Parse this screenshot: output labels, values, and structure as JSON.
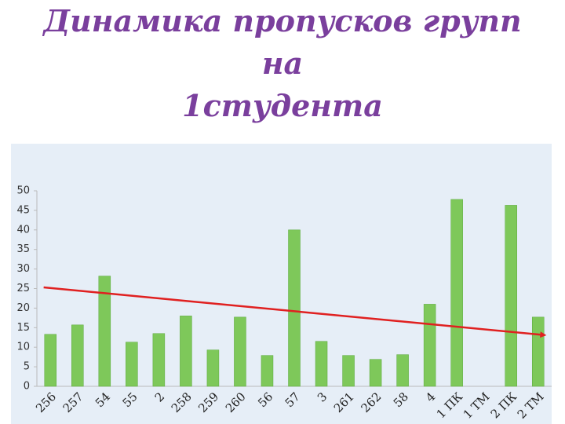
{
  "chart_data": {
    "type": "bar",
    "title": [
      "Динамика пропусков групп",
      "на",
      "1студента"
    ],
    "categories": [
      "256",
      "257",
      "54",
      "55",
      "2",
      "258",
      "259",
      "260",
      "56",
      "57",
      "3",
      "261",
      "262",
      "58",
      "4",
      "1 ПК",
      "1 ТМ",
      "2 ПК",
      "2 ТМ"
    ],
    "values": [
      13.3,
      15.7,
      28.2,
      11.3,
      13.5,
      18,
      9.3,
      17.7,
      7.9,
      40,
      11.5,
      7.9,
      6.9,
      8.1,
      21,
      47.8,
      null,
      46.3,
      17.7
    ],
    "color": "#7ec85a",
    "ylim": [
      0,
      50
    ],
    "yticks": [
      0,
      5,
      10,
      15,
      20,
      25,
      30,
      35,
      40,
      45,
      50
    ],
    "trendline": {
      "color": "#e02020",
      "start": 25.3,
      "end": 13.1
    }
  }
}
